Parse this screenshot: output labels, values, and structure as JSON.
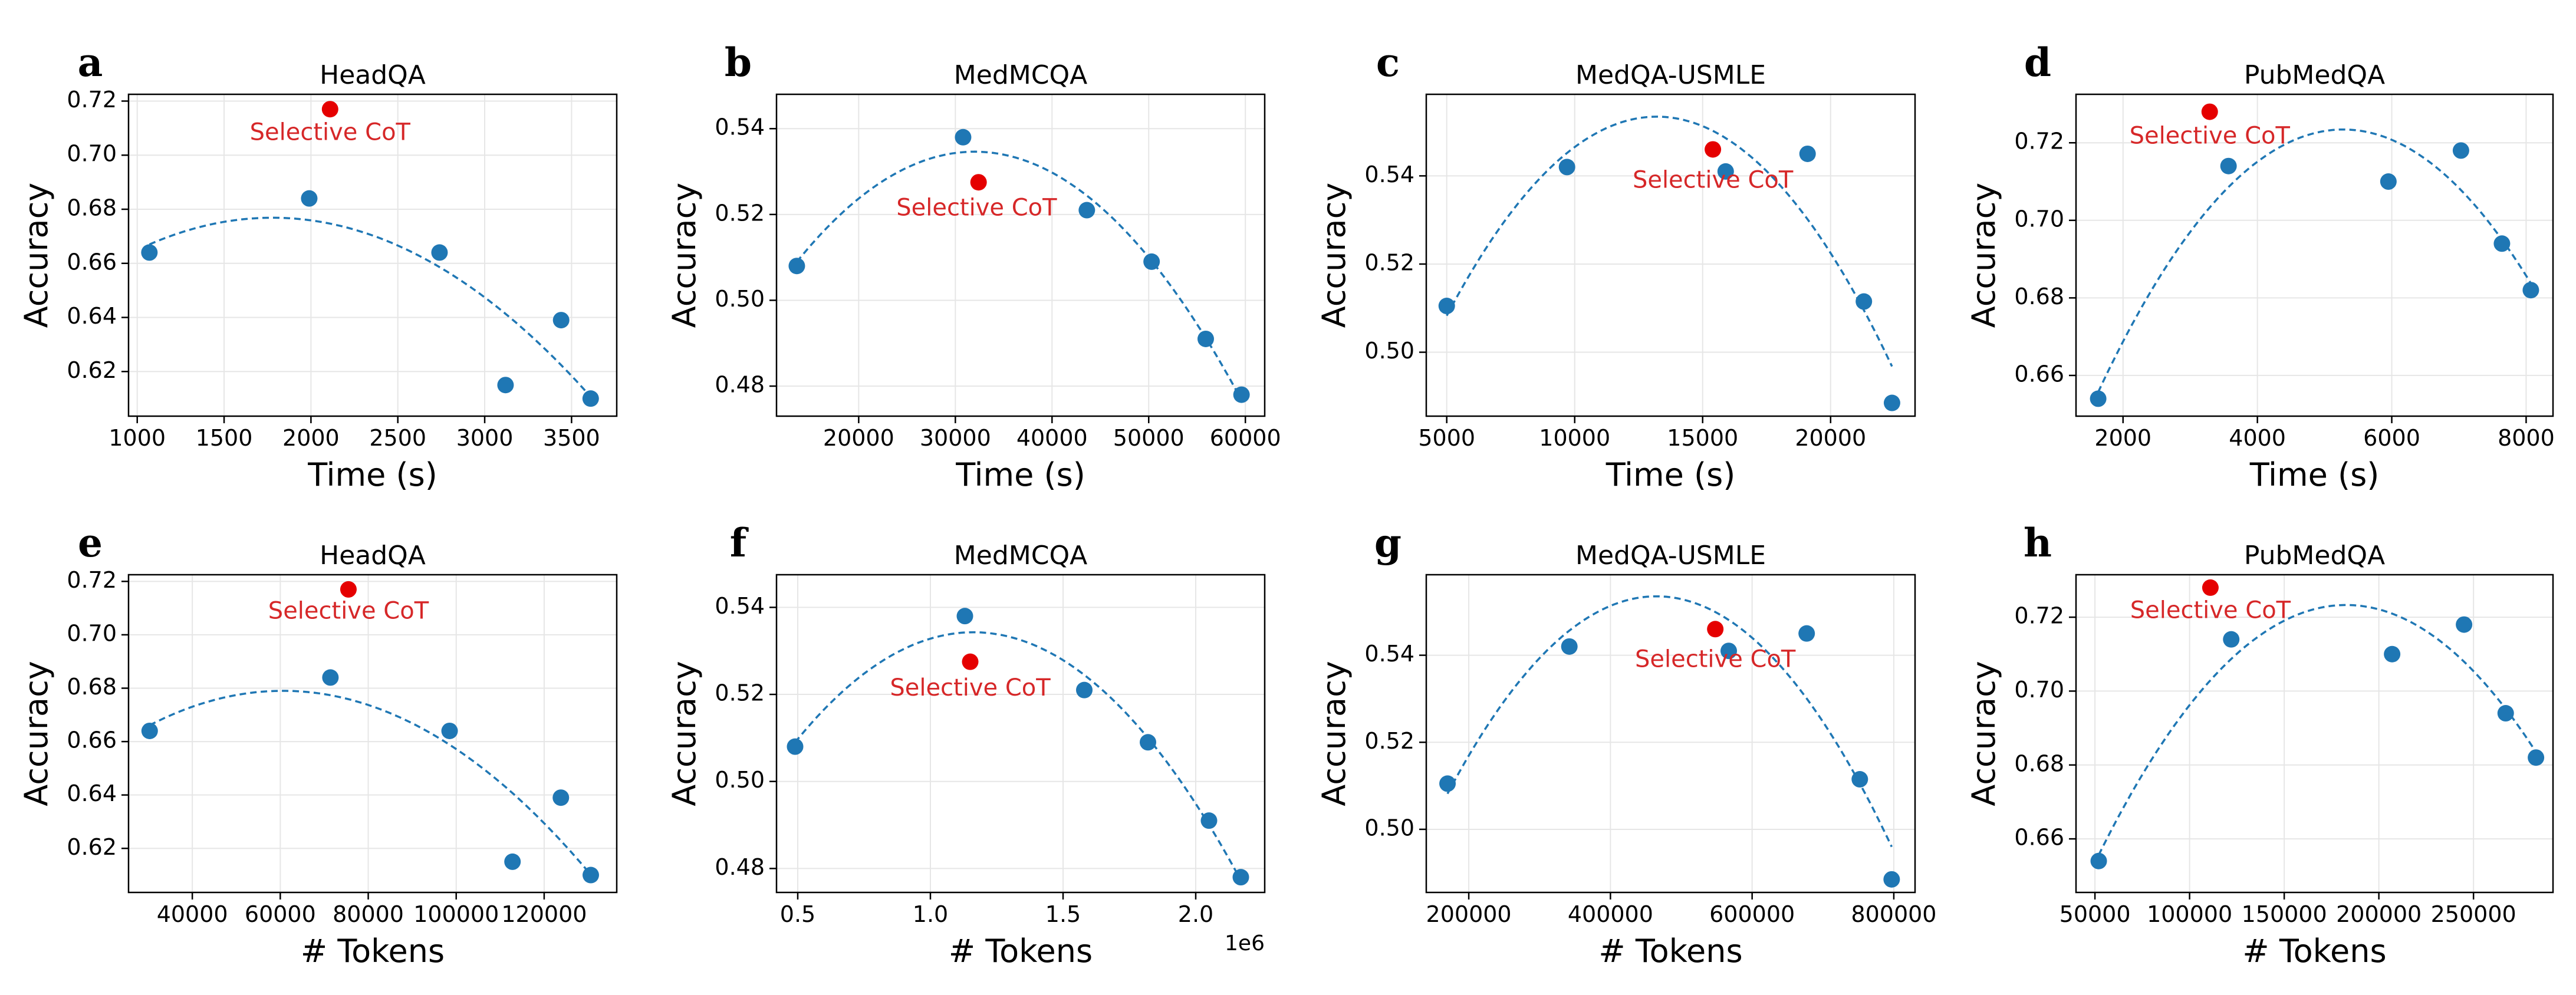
{
  "colors": {
    "points": "#1f77b4",
    "fit": "#1f77b4",
    "highlight": "#e50000",
    "annotation": "#d62728"
  },
  "chart_data": [
    {
      "panel": "a",
      "type": "scatter",
      "title": "HeadQA",
      "xlabel": "Time (s)",
      "ylabel": "Accuracy",
      "xlim": [
        950,
        3760
      ],
      "ylim": [
        0.6035,
        0.7225
      ],
      "xticks": [
        1000,
        1500,
        2000,
        2500,
        3000,
        3500
      ],
      "xtick_labels": [
        "1000",
        "1500",
        "2000",
        "2500",
        "3000",
        "3500"
      ],
      "yticks": [
        0.62,
        0.64,
        0.66,
        0.68,
        0.7,
        0.72
      ],
      "ytick_labels": [
        "0.62",
        "0.64",
        "0.66",
        "0.68",
        "0.70",
        "0.72"
      ],
      "x_offset_label": "",
      "points": [
        [
          1070,
          0.664
        ],
        [
          1990,
          0.684
        ],
        [
          2740,
          0.664
        ],
        [
          3120,
          0.615
        ],
        [
          3440,
          0.639
        ],
        [
          3610,
          0.61
        ]
      ],
      "fit_x": [
        1070,
        3610
      ],
      "highlight": {
        "x": 2110,
        "y": 0.717,
        "label": "Selective CoT",
        "label_x": 2110,
        "label_y": 0.708
      }
    },
    {
      "panel": "b",
      "type": "scatter",
      "title": "MedMCQA",
      "xlabel": "Time (s)",
      "ylabel": "Accuracy",
      "xlim": [
        11500,
        62000
      ],
      "ylim": [
        0.473,
        0.548
      ],
      "xticks": [
        20000,
        30000,
        40000,
        50000,
        60000
      ],
      "xtick_labels": [
        "20000",
        "30000",
        "40000",
        "50000",
        "60000"
      ],
      "yticks": [
        0.48,
        0.5,
        0.52,
        0.54
      ],
      "ytick_labels": [
        "0.48",
        "0.50",
        "0.52",
        "0.54"
      ],
      "x_offset_label": "",
      "points": [
        [
          13600,
          0.508
        ],
        [
          30800,
          0.538
        ],
        [
          43600,
          0.521
        ],
        [
          50300,
          0.509
        ],
        [
          55900,
          0.491
        ],
        [
          59600,
          0.478
        ]
      ],
      "fit_x": [
        13600,
        59600
      ],
      "highlight": {
        "x": 32400,
        "y": 0.5275,
        "label": "Selective CoT",
        "label_x": 32200,
        "label_y": 0.5213
      }
    },
    {
      "panel": "c",
      "type": "scatter",
      "title": "MedQA-USMLE",
      "xlabel": "Time (s)",
      "ylabel": "Accuracy",
      "xlim": [
        4200,
        23300
      ],
      "ylim": [
        0.4855,
        0.5585
      ],
      "xticks": [
        5000,
        10000,
        15000,
        20000
      ],
      "xtick_labels": [
        "5000",
        "10000",
        "15000",
        "20000"
      ],
      "yticks": [
        0.5,
        0.52,
        0.54
      ],
      "ytick_labels": [
        "0.50",
        "0.52",
        "0.54"
      ],
      "x_offset_label": "",
      "points": [
        [
          5000,
          0.5105
        ],
        [
          9700,
          0.542
        ],
        [
          15900,
          0.541
        ],
        [
          19100,
          0.545
        ],
        [
          21300,
          0.5115
        ],
        [
          22400,
          0.4885
        ]
      ],
      "fit_x": [
        5000,
        22400
      ],
      "highlight": {
        "x": 15400,
        "y": 0.546,
        "label": "Selective CoT",
        "label_x": 15400,
        "label_y": 0.5388
      }
    },
    {
      "panel": "d",
      "type": "scatter",
      "title": "PubMedQA",
      "xlabel": "Time (s)",
      "ylabel": "Accuracy",
      "xlim": [
        1300,
        8400
      ],
      "ylim": [
        0.6495,
        0.7325
      ],
      "xticks": [
        2000,
        4000,
        6000,
        8000
      ],
      "xtick_labels": [
        "2000",
        "4000",
        "6000",
        "8000"
      ],
      "yticks": [
        0.66,
        0.68,
        0.7,
        0.72
      ],
      "ytick_labels": [
        "0.66",
        "0.68",
        "0.70",
        "0.72"
      ],
      "x_offset_label": "",
      "points": [
        [
          1630,
          0.654
        ],
        [
          3570,
          0.714
        ],
        [
          5950,
          0.71
        ],
        [
          7030,
          0.718
        ],
        [
          7640,
          0.694
        ],
        [
          8070,
          0.682
        ]
      ],
      "fit_x": [
        1630,
        8070
      ],
      "highlight": {
        "x": 3290,
        "y": 0.728,
        "label": "Selective CoT",
        "label_x": 3290,
        "label_y": 0.7215
      }
    },
    {
      "panel": "e",
      "type": "scatter",
      "title": "HeadQA",
      "xlabel": "# Tokens",
      "ylabel": "Accuracy",
      "xlim": [
        25500,
        136500
      ],
      "ylim": [
        0.6035,
        0.7225
      ],
      "xticks": [
        40000,
        60000,
        80000,
        100000,
        120000
      ],
      "xtick_labels": [
        "40000",
        "60000",
        "80000",
        "100000",
        "120000"
      ],
      "yticks": [
        0.62,
        0.64,
        0.66,
        0.68,
        0.7,
        0.72
      ],
      "ytick_labels": [
        "0.62",
        "0.64",
        "0.66",
        "0.68",
        "0.70",
        "0.72"
      ],
      "x_offset_label": "",
      "points": [
        [
          30300,
          0.664
        ],
        [
          71400,
          0.684
        ],
        [
          98500,
          0.664
        ],
        [
          112800,
          0.615
        ],
        [
          123800,
          0.639
        ],
        [
          130600,
          0.61
        ]
      ],
      "fit_x": [
        30300,
        130600
      ],
      "highlight": {
        "x": 75500,
        "y": 0.717,
        "label": "Selective CoT",
        "label_x": 75500,
        "label_y": 0.7085
      }
    },
    {
      "panel": "f",
      "type": "scatter",
      "title": "MedMCQA",
      "xlabel": "# Tokens",
      "ylabel": "Accuracy",
      "xlim": [
        420000,
        2260000
      ],
      "ylim": [
        0.4745,
        0.5475
      ],
      "xticks": [
        500000,
        1000000,
        1500000,
        2000000
      ],
      "xtick_labels": [
        "0.5",
        "1.0",
        "1.5",
        "2.0"
      ],
      "yticks": [
        0.48,
        0.5,
        0.52,
        0.54
      ],
      "ytick_labels": [
        "0.48",
        "0.50",
        "0.52",
        "0.54"
      ],
      "x_offset_label": "1e6",
      "points": [
        [
          490000,
          0.508
        ],
        [
          1130000,
          0.538
        ],
        [
          1580000,
          0.521
        ],
        [
          1820000,
          0.509
        ],
        [
          2050000,
          0.491
        ],
        [
          2170000,
          0.478
        ]
      ],
      "fit_x": [
        490000,
        2170000
      ],
      "highlight": {
        "x": 1150000,
        "y": 0.5275,
        "label": "Selective CoT",
        "label_x": 1150000,
        "label_y": 0.5212
      }
    },
    {
      "panel": "g",
      "type": "scatter",
      "title": "MedQA-USMLE",
      "xlabel": "# Tokens",
      "ylabel": "Accuracy",
      "xlim": [
        140000,
        830000
      ],
      "ylim": [
        0.4855,
        0.5585
      ],
      "xticks": [
        200000,
        400000,
        600000,
        800000
      ],
      "xtick_labels": [
        "200000",
        "400000",
        "600000",
        "800000"
      ],
      "yticks": [
        0.5,
        0.52,
        0.54
      ],
      "ytick_labels": [
        "0.50",
        "0.52",
        "0.54"
      ],
      "x_offset_label": "",
      "points": [
        [
          170000,
          0.5105
        ],
        [
          342000,
          0.542
        ],
        [
          567000,
          0.541
        ],
        [
          677000,
          0.545
        ],
        [
          752000,
          0.5115
        ],
        [
          797000,
          0.4885
        ]
      ],
      "fit_x": [
        170000,
        797000
      ],
      "highlight": {
        "x": 548000,
        "y": 0.546,
        "label": "Selective CoT",
        "label_x": 548000,
        "label_y": 0.5388
      }
    },
    {
      "panel": "h",
      "type": "scatter",
      "title": "PubMedQA",
      "xlabel": "# Tokens",
      "ylabel": "Accuracy",
      "xlim": [
        40000,
        292000
      ],
      "ylim": [
        0.6455,
        0.7315
      ],
      "xticks": [
        50000,
        100000,
        150000,
        200000,
        250000
      ],
      "xtick_labels": [
        "50000",
        "100000",
        "150000",
        "200000",
        "250000"
      ],
      "yticks": [
        0.66,
        0.68,
        0.7,
        0.72
      ],
      "ytick_labels": [
        "0.66",
        "0.68",
        "0.70",
        "0.72"
      ],
      "x_offset_label": "",
      "points": [
        [
          52000,
          0.654
        ],
        [
          122000,
          0.714
        ],
        [
          207000,
          0.71
        ],
        [
          245000,
          0.718
        ],
        [
          267000,
          0.694
        ],
        [
          283000,
          0.682
        ]
      ],
      "fit_x": [
        52000,
        283000
      ],
      "highlight": {
        "x": 111000,
        "y": 0.728,
        "label": "Selective CoT",
        "label_x": 111000,
        "label_y": 0.7215
      }
    }
  ]
}
